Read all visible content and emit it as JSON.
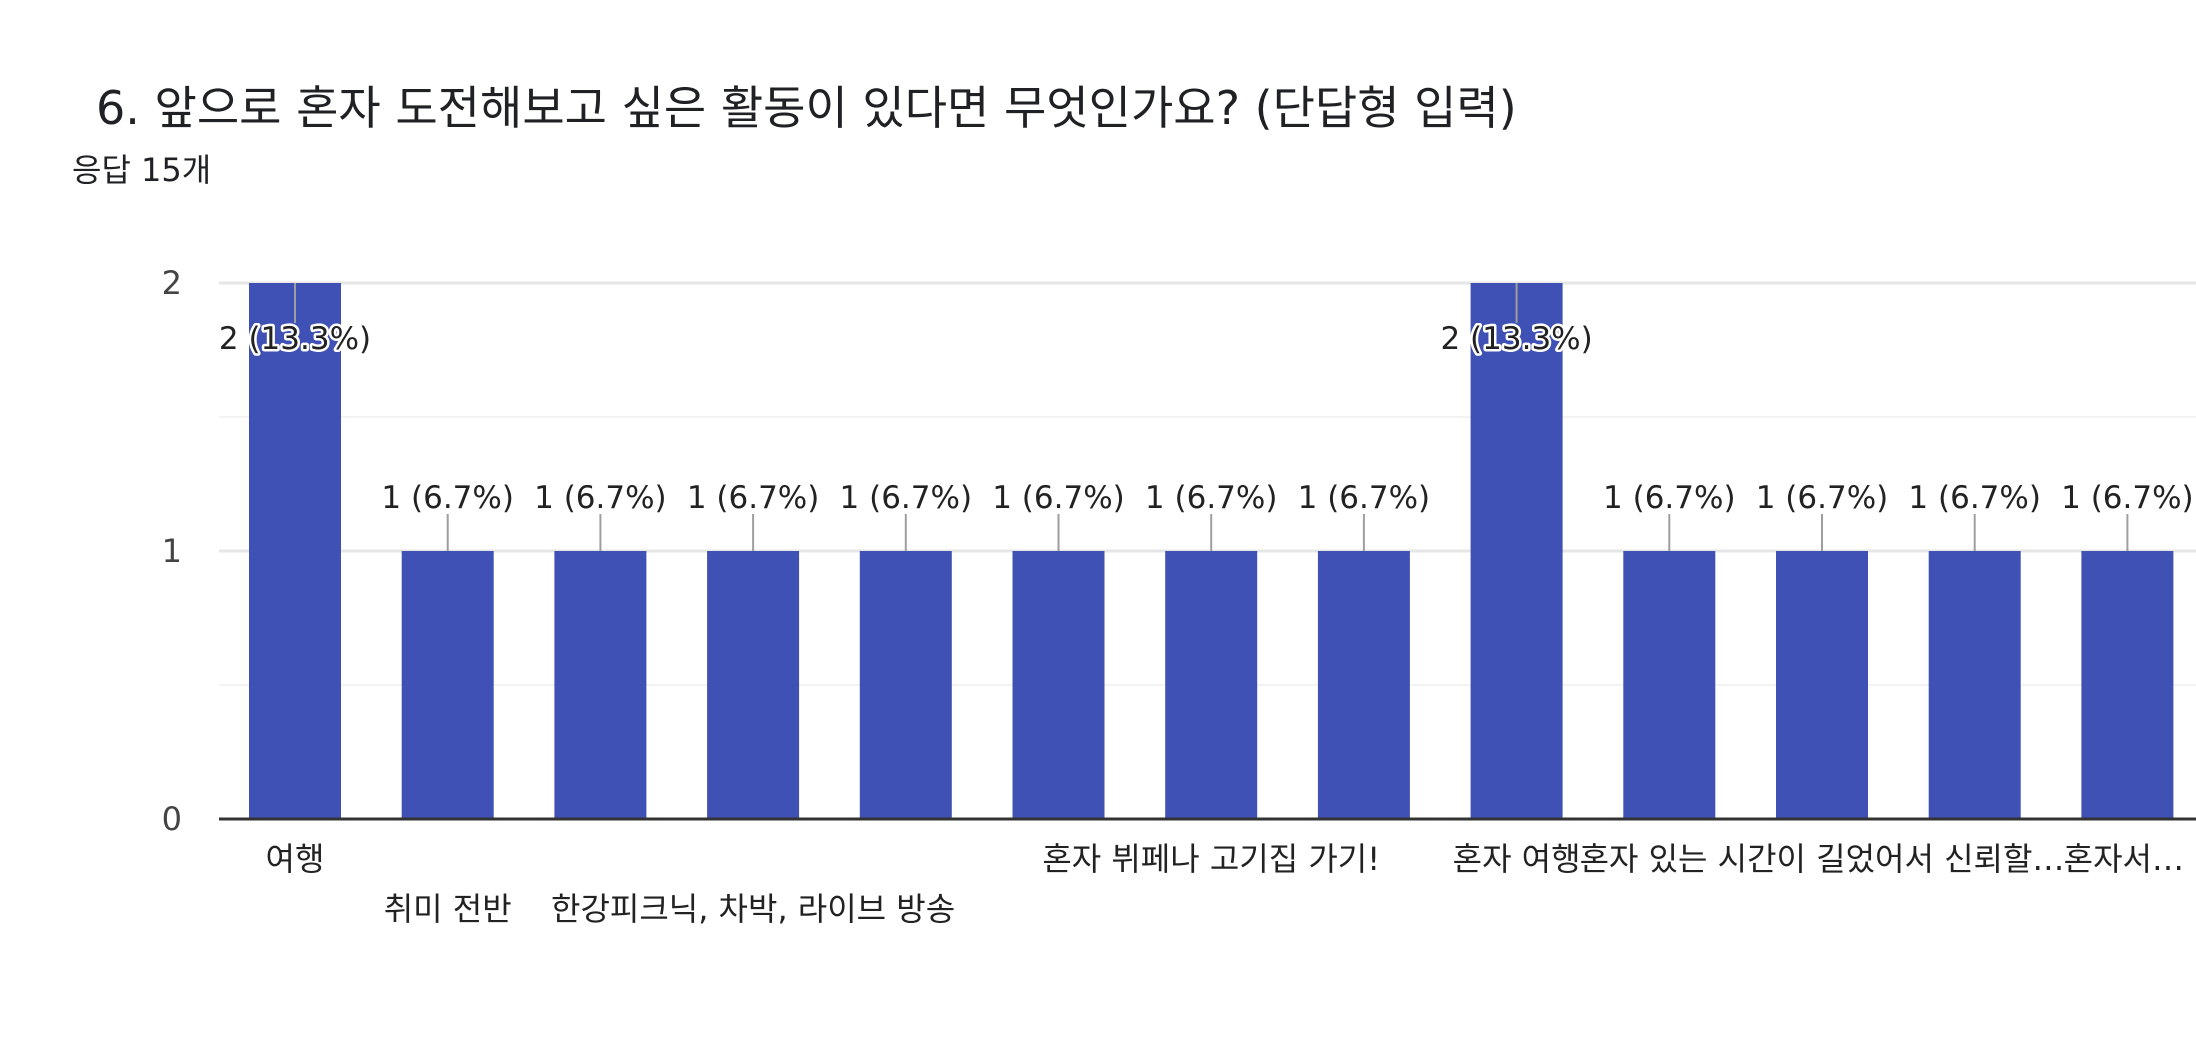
{
  "question": {
    "title": "6. 앞으로 혼자 도전해보고 싶은 활동이 있다면 무엇인가요? (단답형 입력)",
    "responses": "응답 15개"
  },
  "colors": {
    "bar": "#3f51b5",
    "grid": "#e6e6e6",
    "axis": "#333333",
    "leader": "#9e9e9e"
  },
  "chart_data": {
    "type": "bar",
    "title": "",
    "xlabel": "",
    "ylabel": "",
    "ylim": [
      0,
      2
    ],
    "yticks": [
      0,
      1,
      2
    ],
    "grid": true,
    "legend": "none",
    "categories": [
      "여행",
      "취미 전반",
      "",
      "한강피크닉, 차박, 라이브 방송",
      "",
      "",
      "혼자 뷔페나 고기집 가기!",
      "",
      "혼자 여행",
      "",
      "혼자 있는 시간이 길었어서 신뢰할…",
      "",
      "혼자서…"
    ],
    "values": [
      2,
      1,
      1,
      1,
      1,
      1,
      1,
      1,
      2,
      1,
      1,
      1,
      1
    ],
    "data_labels": [
      "2 (13.3%)",
      "1 (6.7%)",
      "1 (6.7%)",
      "1 (6.7%)",
      "1 (6.7%)",
      "1 (6.7%)",
      "1 (6.7%)",
      "1 (6.7%)",
      "2 (13.3%)",
      "1 (6.7%)",
      "1 (6.7%)",
      "1 (6.7%)",
      "1 (6.7%)"
    ]
  }
}
